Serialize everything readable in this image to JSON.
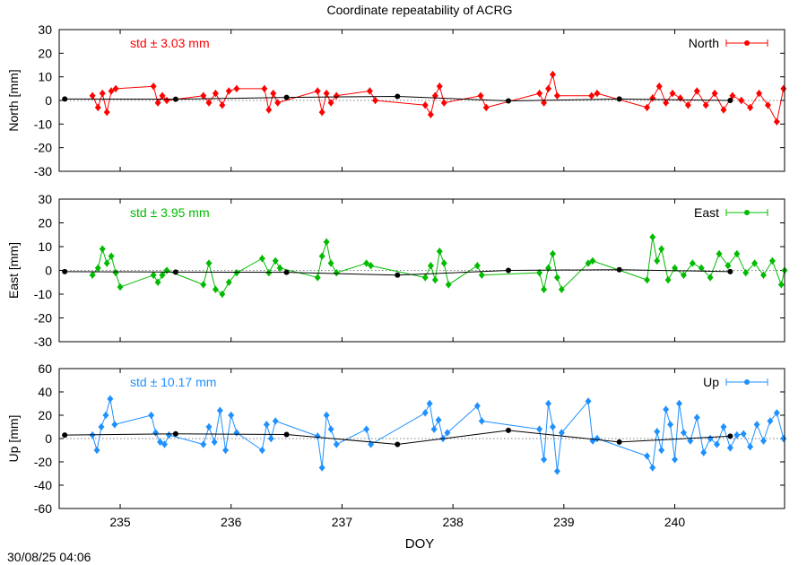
{
  "chart_data": {
    "title": "Coordinate repeatability of ACRG",
    "timestamp": "30/08/25 04:06",
    "xlabel": "DOY",
    "xlim": [
      234.45,
      240.99
    ],
    "xticks": [
      235,
      236,
      237,
      238,
      239,
      240
    ],
    "panels": [
      {
        "type": "scatter",
        "ylabel": "North [mm]",
        "ylim": [
          -30,
          30
        ],
        "yticks": [
          -30,
          -20,
          -10,
          0,
          10,
          20,
          30
        ],
        "legend": "North",
        "color": "#ff0000",
        "std_label": "std ± 3.03 mm",
        "series": [
          {
            "name": "North",
            "style": "segments",
            "segments": [
              {
                "x": [
                  234.75,
                  234.8,
                  234.84,
                  234.88,
                  234.92,
                  234.96
                ],
                "y": [
                  2,
                  -3,
                  3,
                  -5,
                  4,
                  5
                ]
              },
              {
                "x": [
                  235.3,
                  235.34,
                  235.38,
                  235.42
                ],
                "y": [
                  6,
                  -1,
                  2,
                  0
                ]
              },
              {
                "x": [
                  235.75,
                  235.8,
                  235.86,
                  235.92,
                  235.98,
                  236.05
                ],
                "y": [
                  2,
                  -1,
                  3,
                  -2,
                  4,
                  5
                ]
              },
              {
                "x": [
                  236.3,
                  236.34,
                  236.38,
                  236.42
                ],
                "y": [
                  5,
                  -4,
                  3,
                  -1
                ]
              },
              {
                "x": [
                  236.78,
                  236.82,
                  236.86,
                  236.9,
                  236.95
                ],
                "y": [
                  4,
                  -5,
                  3,
                  -1,
                  2
                ]
              },
              {
                "x": [
                  237.25,
                  237.3
                ],
                "y": [
                  4,
                  0
                ]
              },
              {
                "x": [
                  237.75,
                  237.8,
                  237.84,
                  237.88,
                  237.92
                ],
                "y": [
                  -2,
                  -6,
                  2,
                  6,
                  -1
                ]
              },
              {
                "x": [
                  238.25,
                  238.3
                ],
                "y": [
                  2,
                  -3
                ]
              },
              {
                "x": [
                  238.78,
                  238.82,
                  238.86,
                  238.9,
                  238.94
                ],
                "y": [
                  3,
                  -1,
                  5,
                  11,
                  2
                ]
              },
              {
                "x": [
                  239.25,
                  239.3
                ],
                "y": [
                  2,
                  3
                ]
              },
              {
                "x": [
                  239.75,
                  239.8,
                  239.86,
                  239.92,
                  239.98,
                  240.05,
                  240.12,
                  240.2,
                  240.28,
                  240.36,
                  240.44,
                  240.52,
                  240.6,
                  240.68,
                  240.76,
                  240.84,
                  240.92,
                  240.98
                ],
                "y": [
                  -3,
                  1,
                  6,
                  -1,
                  3,
                  1,
                  -2,
                  4,
                  -2,
                  3,
                  -4,
                  2,
                  0,
                  -3,
                  3,
                  -2,
                  -9,
                  5
                ]
              }
            ]
          },
          {
            "name": "daily",
            "style": "daily",
            "x": [
              234.5,
              235.5,
              236.5,
              237.5,
              238.5,
              239.5,
              240.5
            ],
            "y": [
              0.6,
              0.5,
              1.3,
              1.7,
              -0.2,
              0.6,
              0.0
            ]
          }
        ]
      },
      {
        "type": "scatter",
        "ylabel": "East [mm]",
        "ylim": [
          -30,
          30
        ],
        "yticks": [
          -30,
          -20,
          -10,
          0,
          10,
          20,
          30
        ],
        "legend": "East",
        "color": "#00bb00",
        "std_label": "std ± 3.95 mm",
        "series": [
          {
            "name": "East",
            "style": "segments",
            "segments": [
              {
                "x": [
                  234.75,
                  234.8,
                  234.84,
                  234.88,
                  234.92,
                  234.96,
                  235.0
                ],
                "y": [
                  -2,
                  1,
                  9,
                  3,
                  6,
                  -1,
                  -7
                ]
              },
              {
                "x": [
                  235.3,
                  235.34,
                  235.38,
                  235.42
                ],
                "y": [
                  -2,
                  -5,
                  -2,
                  0
                ]
              },
              {
                "x": [
                  235.75,
                  235.8,
                  235.86,
                  235.92,
                  235.98,
                  236.05
                ],
                "y": [
                  -6,
                  3,
                  -8,
                  -10,
                  -5,
                  -1
                ]
              },
              {
                "x": [
                  236.28,
                  236.34,
                  236.4,
                  236.44
                ],
                "y": [
                  5,
                  -1,
                  4,
                  1
                ]
              },
              {
                "x": [
                  236.78,
                  236.82,
                  236.86,
                  236.9,
                  236.95
                ],
                "y": [
                  -3,
                  6,
                  12,
                  3,
                  -1
                ]
              },
              {
                "x": [
                  237.22,
                  237.26
                ],
                "y": [
                  3,
                  2
                ]
              },
              {
                "x": [
                  237.75,
                  237.8,
                  237.84,
                  237.88,
                  237.92,
                  237.96
                ],
                "y": [
                  -3,
                  2,
                  -4,
                  8,
                  3,
                  -6
                ]
              },
              {
                "x": [
                  238.22,
                  238.26
                ],
                "y": [
                  2,
                  -2
                ]
              },
              {
                "x": [
                  238.78,
                  238.82,
                  238.86,
                  238.9,
                  238.94,
                  238.98
                ],
                "y": [
                  -1,
                  -8,
                  1,
                  7,
                  -3,
                  -8
                ]
              },
              {
                "x": [
                  239.22,
                  239.26
                ],
                "y": [
                  3,
                  4
                ]
              },
              {
                "x": [
                  239.75,
                  239.8,
                  239.84,
                  239.88,
                  239.94,
                  240.0,
                  240.08,
                  240.16,
                  240.24,
                  240.32,
                  240.4,
                  240.48,
                  240.56,
                  240.64,
                  240.72,
                  240.8,
                  240.88,
                  240.96,
                  240.99
                ],
                "y": [
                  -4,
                  14,
                  4,
                  9,
                  -4,
                  1,
                  -2,
                  3,
                  1,
                  -3,
                  7,
                  2,
                  7,
                  -1,
                  3,
                  -2,
                  4,
                  -6,
                  0
                ]
              }
            ]
          },
          {
            "name": "daily",
            "style": "daily",
            "x": [
              234.5,
              235.5,
              236.5,
              237.5,
              238.5,
              239.5,
              240.5
            ],
            "y": [
              -0.5,
              -0.7,
              -0.8,
              -2.0,
              0.0,
              0.3,
              -0.5
            ]
          }
        ]
      },
      {
        "type": "scatter",
        "ylabel": "Up [mm]",
        "ylim": [
          -60,
          60
        ],
        "yticks": [
          -60,
          -40,
          -20,
          0,
          20,
          40,
          60
        ],
        "legend": "Up",
        "color": "#1e90ff",
        "std_label": "std ± 10.17 mm",
        "series": [
          {
            "name": "Up",
            "style": "segments",
            "segments": [
              {
                "x": [
                  234.75,
                  234.79,
                  234.83,
                  234.87,
                  234.91,
                  234.95
                ],
                "y": [
                  3,
                  -10,
                  10,
                  20,
                  34,
                  12
                ]
              },
              {
                "x": [
                  235.28,
                  235.32,
                  235.36,
                  235.4,
                  235.44
                ],
                "y": [
                  20,
                  5,
                  -3,
                  -5,
                  3
                ]
              },
              {
                "x": [
                  235.75,
                  235.8,
                  235.85,
                  235.9,
                  235.95,
                  236.0,
                  236.05
                ],
                "y": [
                  -5,
                  10,
                  -3,
                  24,
                  -10,
                  20,
                  5
                ]
              },
              {
                "x": [
                  236.28,
                  236.32,
                  236.36,
                  236.4
                ],
                "y": [
                  -10,
                  12,
                  0,
                  15
                ]
              },
              {
                "x": [
                  236.78,
                  236.82,
                  236.86,
                  236.9,
                  236.95
                ],
                "y": [
                  2,
                  -25,
                  20,
                  8,
                  -5
                ]
              },
              {
                "x": [
                  237.22,
                  237.26
                ],
                "y": [
                  8,
                  -5
                ]
              },
              {
                "x": [
                  237.75,
                  237.79,
                  237.83,
                  237.87,
                  237.91,
                  237.95
                ],
                "y": [
                  22,
                  30,
                  8,
                  16,
                  0,
                  5
                ]
              },
              {
                "x": [
                  238.22,
                  238.26
                ],
                "y": [
                  28,
                  15
                ]
              },
              {
                "x": [
                  238.78,
                  238.82,
                  238.86,
                  238.9,
                  238.94,
                  238.98
                ],
                "y": [
                  8,
                  -18,
                  30,
                  10,
                  -28,
                  5
                ]
              },
              {
                "x": [
                  239.22,
                  239.26,
                  239.3
                ],
                "y": [
                  32,
                  -2,
                  0
                ]
              },
              {
                "x": [
                  239.75,
                  239.8,
                  239.84,
                  239.88,
                  239.92,
                  239.96,
                  240.0,
                  240.04,
                  240.08,
                  240.14,
                  240.2,
                  240.26,
                  240.32,
                  240.38,
                  240.44,
                  240.5,
                  240.56,
                  240.62,
                  240.68,
                  240.74,
                  240.8,
                  240.86,
                  240.92,
                  240.98
                ],
                "y": [
                  -15,
                  -25,
                  6,
                  -10,
                  25,
                  12,
                  -18,
                  30,
                  5,
                  -2,
                  18,
                  -12,
                  0,
                  -5,
                  10,
                  -8,
                  3,
                  4,
                  -7,
                  12,
                  -2,
                  15,
                  22,
                  0
                ]
              }
            ]
          },
          {
            "name": "daily",
            "style": "daily",
            "x": [
              234.5,
              235.5,
              236.5,
              237.5,
              238.5,
              239.5,
              240.5
            ],
            "y": [
              3,
              4,
              3.5,
              -5,
              7,
              -3,
              2
            ]
          }
        ]
      }
    ]
  }
}
